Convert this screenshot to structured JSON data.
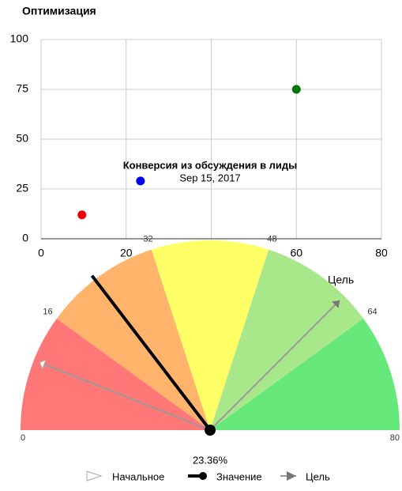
{
  "chart_data": [
    {
      "type": "scatter",
      "title": "Оптимизация",
      "x": [
        9.6,
        23.36,
        60
      ],
      "y": [
        12,
        29,
        75
      ],
      "colors": [
        "#ee0000",
        "#0000ee",
        "#007700"
      ],
      "xlim": [
        0,
        80
      ],
      "xticks": [
        0,
        20,
        40,
        60,
        80
      ],
      "ylim": [
        0,
        100
      ],
      "yticks": [
        0,
        25,
        50,
        75,
        100
      ],
      "grid": true,
      "tooltip": {
        "title": "Конверсия из обсуждения в лиды",
        "subtitle": "Sep 15, 2017"
      },
      "legend": [
        "Цель"
      ]
    },
    {
      "type": "gauge",
      "range": [
        0,
        80
      ],
      "ticks": [
        0,
        16,
        32,
        48,
        64,
        80
      ],
      "band_colors": [
        "#ff7777",
        "#ffb36b",
        "#ffff66",
        "#a8e88a",
        "#66e87a"
      ],
      "start": 9.6,
      "value": 23.36,
      "value_label": "23.36%",
      "target": 60,
      "legend": [
        "Начальное",
        "Значение",
        "Цель"
      ]
    }
  ]
}
